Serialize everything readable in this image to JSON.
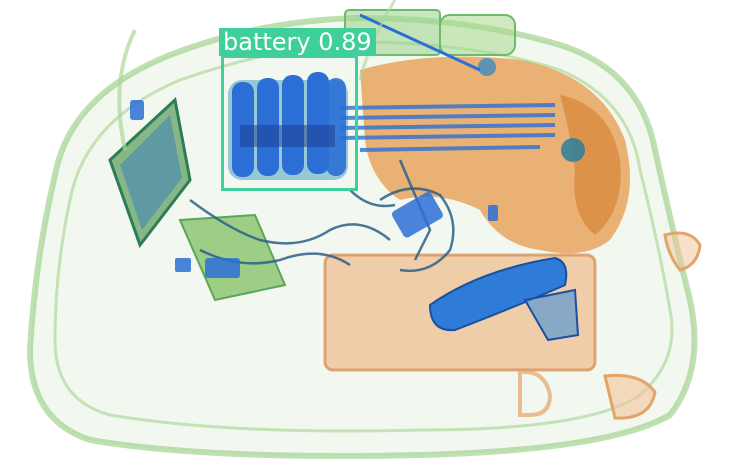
{
  "image": {
    "kind": "x-ray baggage scan with object detection overlay"
  },
  "detections": [
    {
      "label": "battery",
      "score": "0.89",
      "color": "#3fcf9a"
    }
  ],
  "colors": {
    "organic": "#e59a4b",
    "mixed": "#8fcf6a",
    "metal": "#2b6fd6",
    "detection": "#3fcf9a"
  }
}
